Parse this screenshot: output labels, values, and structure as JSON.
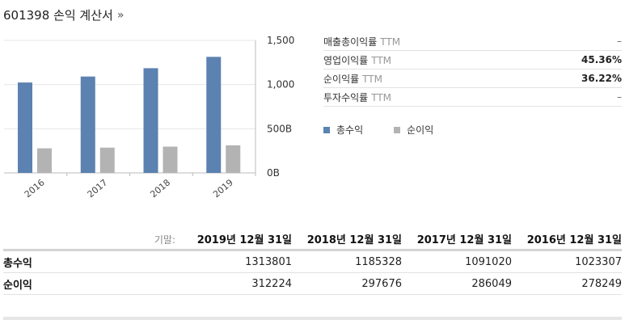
{
  "header": {
    "title": "601398 손익 계산서",
    "more": "»"
  },
  "chart_data": {
    "type": "bar",
    "categories": [
      "2016",
      "2017",
      "2018",
      "2019"
    ],
    "series": [
      {
        "name": "총수익",
        "color": "#5b82b0",
        "values": [
          1023307,
          1091020,
          1185328,
          1313801
        ]
      },
      {
        "name": "순이익",
        "color": "#b3b3b3",
        "values": [
          278249,
          286049,
          297676,
          312224
        ]
      }
    ],
    "yticks": [
      "0B",
      "500B",
      "1,000",
      "1,500"
    ],
    "ylim": [
      0,
      1500000
    ],
    "title": "",
    "xlabel": "",
    "ylabel": ""
  },
  "ratios": [
    {
      "label": "매출총이익률",
      "ttm": "TTM",
      "value": "–"
    },
    {
      "label": "영업이익률",
      "ttm": "TTM",
      "value": "45.36%"
    },
    {
      "label": "순이익률",
      "ttm": "TTM",
      "value": "36.22%"
    },
    {
      "label": "투자수익률",
      "ttm": "TTM",
      "value": "–"
    }
  ],
  "legend": [
    {
      "label": "총수익",
      "color": "#5b82b0"
    },
    {
      "label": "순이익",
      "color": "#b3b3b3"
    }
  ],
  "table": {
    "period_label": "기말:",
    "periods": [
      "2019년 12월 31일",
      "2018년 12월 31일",
      "2017년 12월 31일",
      "2016년 12월 31일"
    ],
    "rows": [
      {
        "label": "총수익",
        "values": [
          "1313801",
          "1185328",
          "1091020",
          "1023307"
        ]
      },
      {
        "label": "순이익",
        "values": [
          "312224",
          "297676",
          "286049",
          "278249"
        ]
      }
    ]
  }
}
